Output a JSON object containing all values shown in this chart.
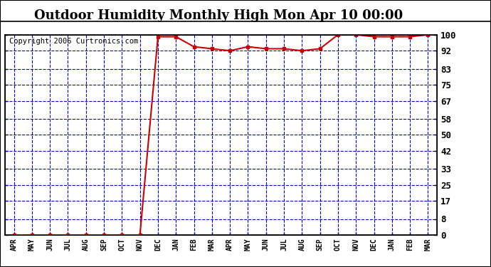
{
  "title": "Outdoor Humidity Monthly High Mon Apr 10 00:00",
  "copyright": "Copyright 2006 Curtronics.com",
  "x_labels": [
    "APR",
    "MAY",
    "JUN",
    "JUL",
    "AUG",
    "SEP",
    "OCT",
    "NOV",
    "DEC",
    "JAN",
    "FEB",
    "MAR",
    "APR",
    "MAY",
    "JUN",
    "JUL",
    "AUG",
    "SEP",
    "OCT",
    "NOV",
    "DEC",
    "JAN",
    "FEB",
    "MAR"
  ],
  "y_values": [
    0,
    0,
    0,
    0,
    0,
    0,
    0,
    0,
    99,
    99,
    94,
    93,
    92,
    94,
    93,
    93,
    92,
    93,
    100,
    100,
    99,
    99,
    99,
    100
  ],
  "y_ticks": [
    0,
    8,
    17,
    25,
    33,
    42,
    50,
    58,
    67,
    75,
    83,
    92,
    100
  ],
  "line_color": "#cc0000",
  "marker_color": "#cc0000",
  "plot_bg_color": "#ffffff",
  "fig_bg_color": "#ffffff",
  "grid_color": "#0000cc",
  "title_fontsize": 13,
  "copyright_fontsize": 7.5,
  "ylim": [
    0,
    100
  ],
  "figsize": [
    6.9,
    3.75
  ],
  "dpi": 100
}
